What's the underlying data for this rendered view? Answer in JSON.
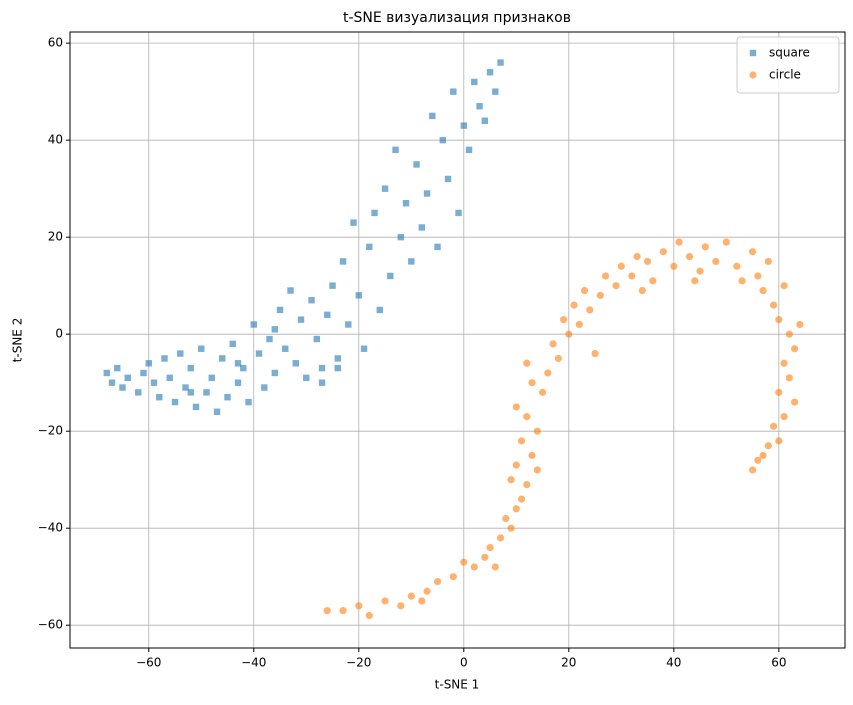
{
  "chart_data": {
    "type": "scatter",
    "title": "t-SNE визуализация признаков",
    "xlabel": "t-SNE 1",
    "ylabel": "t-SNE 2",
    "xlim": [
      -75,
      72.6
    ],
    "ylim": [
      -64.7,
      62.3
    ],
    "xticks": [
      {
        "value": -60,
        "label": "−60"
      },
      {
        "value": -40,
        "label": "−40"
      },
      {
        "value": -20,
        "label": "−20"
      },
      0,
      20,
      40,
      60
    ],
    "yticks": [
      {
        "value": -60,
        "label": "−60"
      },
      {
        "value": -40,
        "label": "−40"
      },
      {
        "value": -20,
        "label": "−20"
      },
      0,
      20,
      40,
      60
    ],
    "grid": true,
    "legend": "upper right",
    "alpha": 0.6,
    "series": [
      {
        "name": "square",
        "color": "#1f77b4",
        "marker": "square",
        "x": [
          -68,
          -67,
          -66,
          -65,
          -64,
          -62,
          -61,
          -60,
          -59,
          -58,
          -57,
          -56,
          -55,
          -54,
          -53,
          -52,
          -51,
          -50,
          -49,
          -48,
          -47,
          -46,
          -45,
          -44,
          -43,
          -42,
          -41,
          -40,
          -39,
          -38,
          -37,
          -36,
          -35,
          -34,
          -33,
          -32,
          -31,
          -30,
          -29,
          -28,
          -27,
          -26,
          -25,
          -24,
          -23,
          -22,
          -21,
          -20,
          -19,
          -18,
          -17,
          -16,
          -15,
          -14,
          -13,
          -12,
          -11,
          -10,
          -9,
          -8,
          -7,
          -6,
          -5,
          -4,
          -3,
          -2,
          -1,
          0,
          1,
          2,
          3,
          4,
          5,
          6,
          7,
          -27,
          -43,
          -52,
          -36,
          -24
        ],
        "values": [
          -8,
          -10,
          -7,
          -11,
          -9,
          -12,
          -8,
          -6,
          -10,
          -13,
          -5,
          -9,
          -14,
          -4,
          -11,
          -7,
          -15,
          -3,
          -12,
          -9,
          -16,
          -5,
          -13,
          -2,
          -10,
          -7,
          -14,
          2,
          -4,
          -11,
          -1,
          -8,
          5,
          -3,
          9,
          -6,
          3,
          -9,
          7,
          -1,
          -7,
          4,
          10,
          -5,
          15,
          2,
          23,
          8,
          -3,
          18,
          25,
          5,
          30,
          12,
          38,
          20,
          27,
          15,
          35,
          22,
          29,
          45,
          18,
          40,
          32,
          50,
          25,
          43,
          38,
          52,
          47,
          44,
          54,
          50,
          56,
          -10,
          -6,
          -12,
          1,
          -7
        ]
      },
      {
        "name": "circle",
        "color": "#ff7f0e",
        "marker": "circle",
        "x": [
          -26,
          -23,
          -20,
          -18,
          -15,
          -12,
          -10,
          -7,
          -5,
          -2,
          0,
          2,
          4,
          5,
          7,
          8,
          9,
          10,
          11,
          9,
          12,
          10,
          13,
          11,
          14,
          12,
          10,
          15,
          13,
          16,
          12,
          18,
          17,
          20,
          19,
          22,
          21,
          24,
          23,
          26,
          27,
          29,
          30,
          32,
          33,
          35,
          36,
          38,
          40,
          41,
          43,
          45,
          46,
          48,
          50,
          52,
          53,
          55,
          56,
          57,
          58,
          59,
          60,
          61,
          62,
          63,
          64,
          61,
          62,
          60,
          63,
          61,
          59,
          60,
          58,
          57,
          56,
          55,
          25,
          14,
          6,
          -8,
          44,
          34
        ],
        "values": [
          -57,
          -57,
          -56,
          -58,
          -55,
          -56,
          -54,
          -53,
          -51,
          -50,
          -47,
          -48,
          -46,
          -44,
          -42,
          -38,
          -40,
          -36,
          -34,
          -30,
          -31,
          -27,
          -25,
          -22,
          -20,
          -17,
          -15,
          -12,
          -10,
          -8,
          -6,
          -5,
          -2,
          0,
          3,
          2,
          6,
          5,
          9,
          8,
          12,
          10,
          14,
          12,
          16,
          15,
          11,
          17,
          14,
          19,
          16,
          13,
          18,
          15,
          19,
          14,
          11,
          17,
          12,
          9,
          15,
          6,
          3,
          10,
          0,
          -3,
          2,
          -6,
          -9,
          -12,
          -14,
          -17,
          -19,
          -22,
          -23,
          -25,
          -26,
          -28,
          -4,
          -28,
          -48,
          -55,
          11,
          9
        ]
      }
    ]
  }
}
